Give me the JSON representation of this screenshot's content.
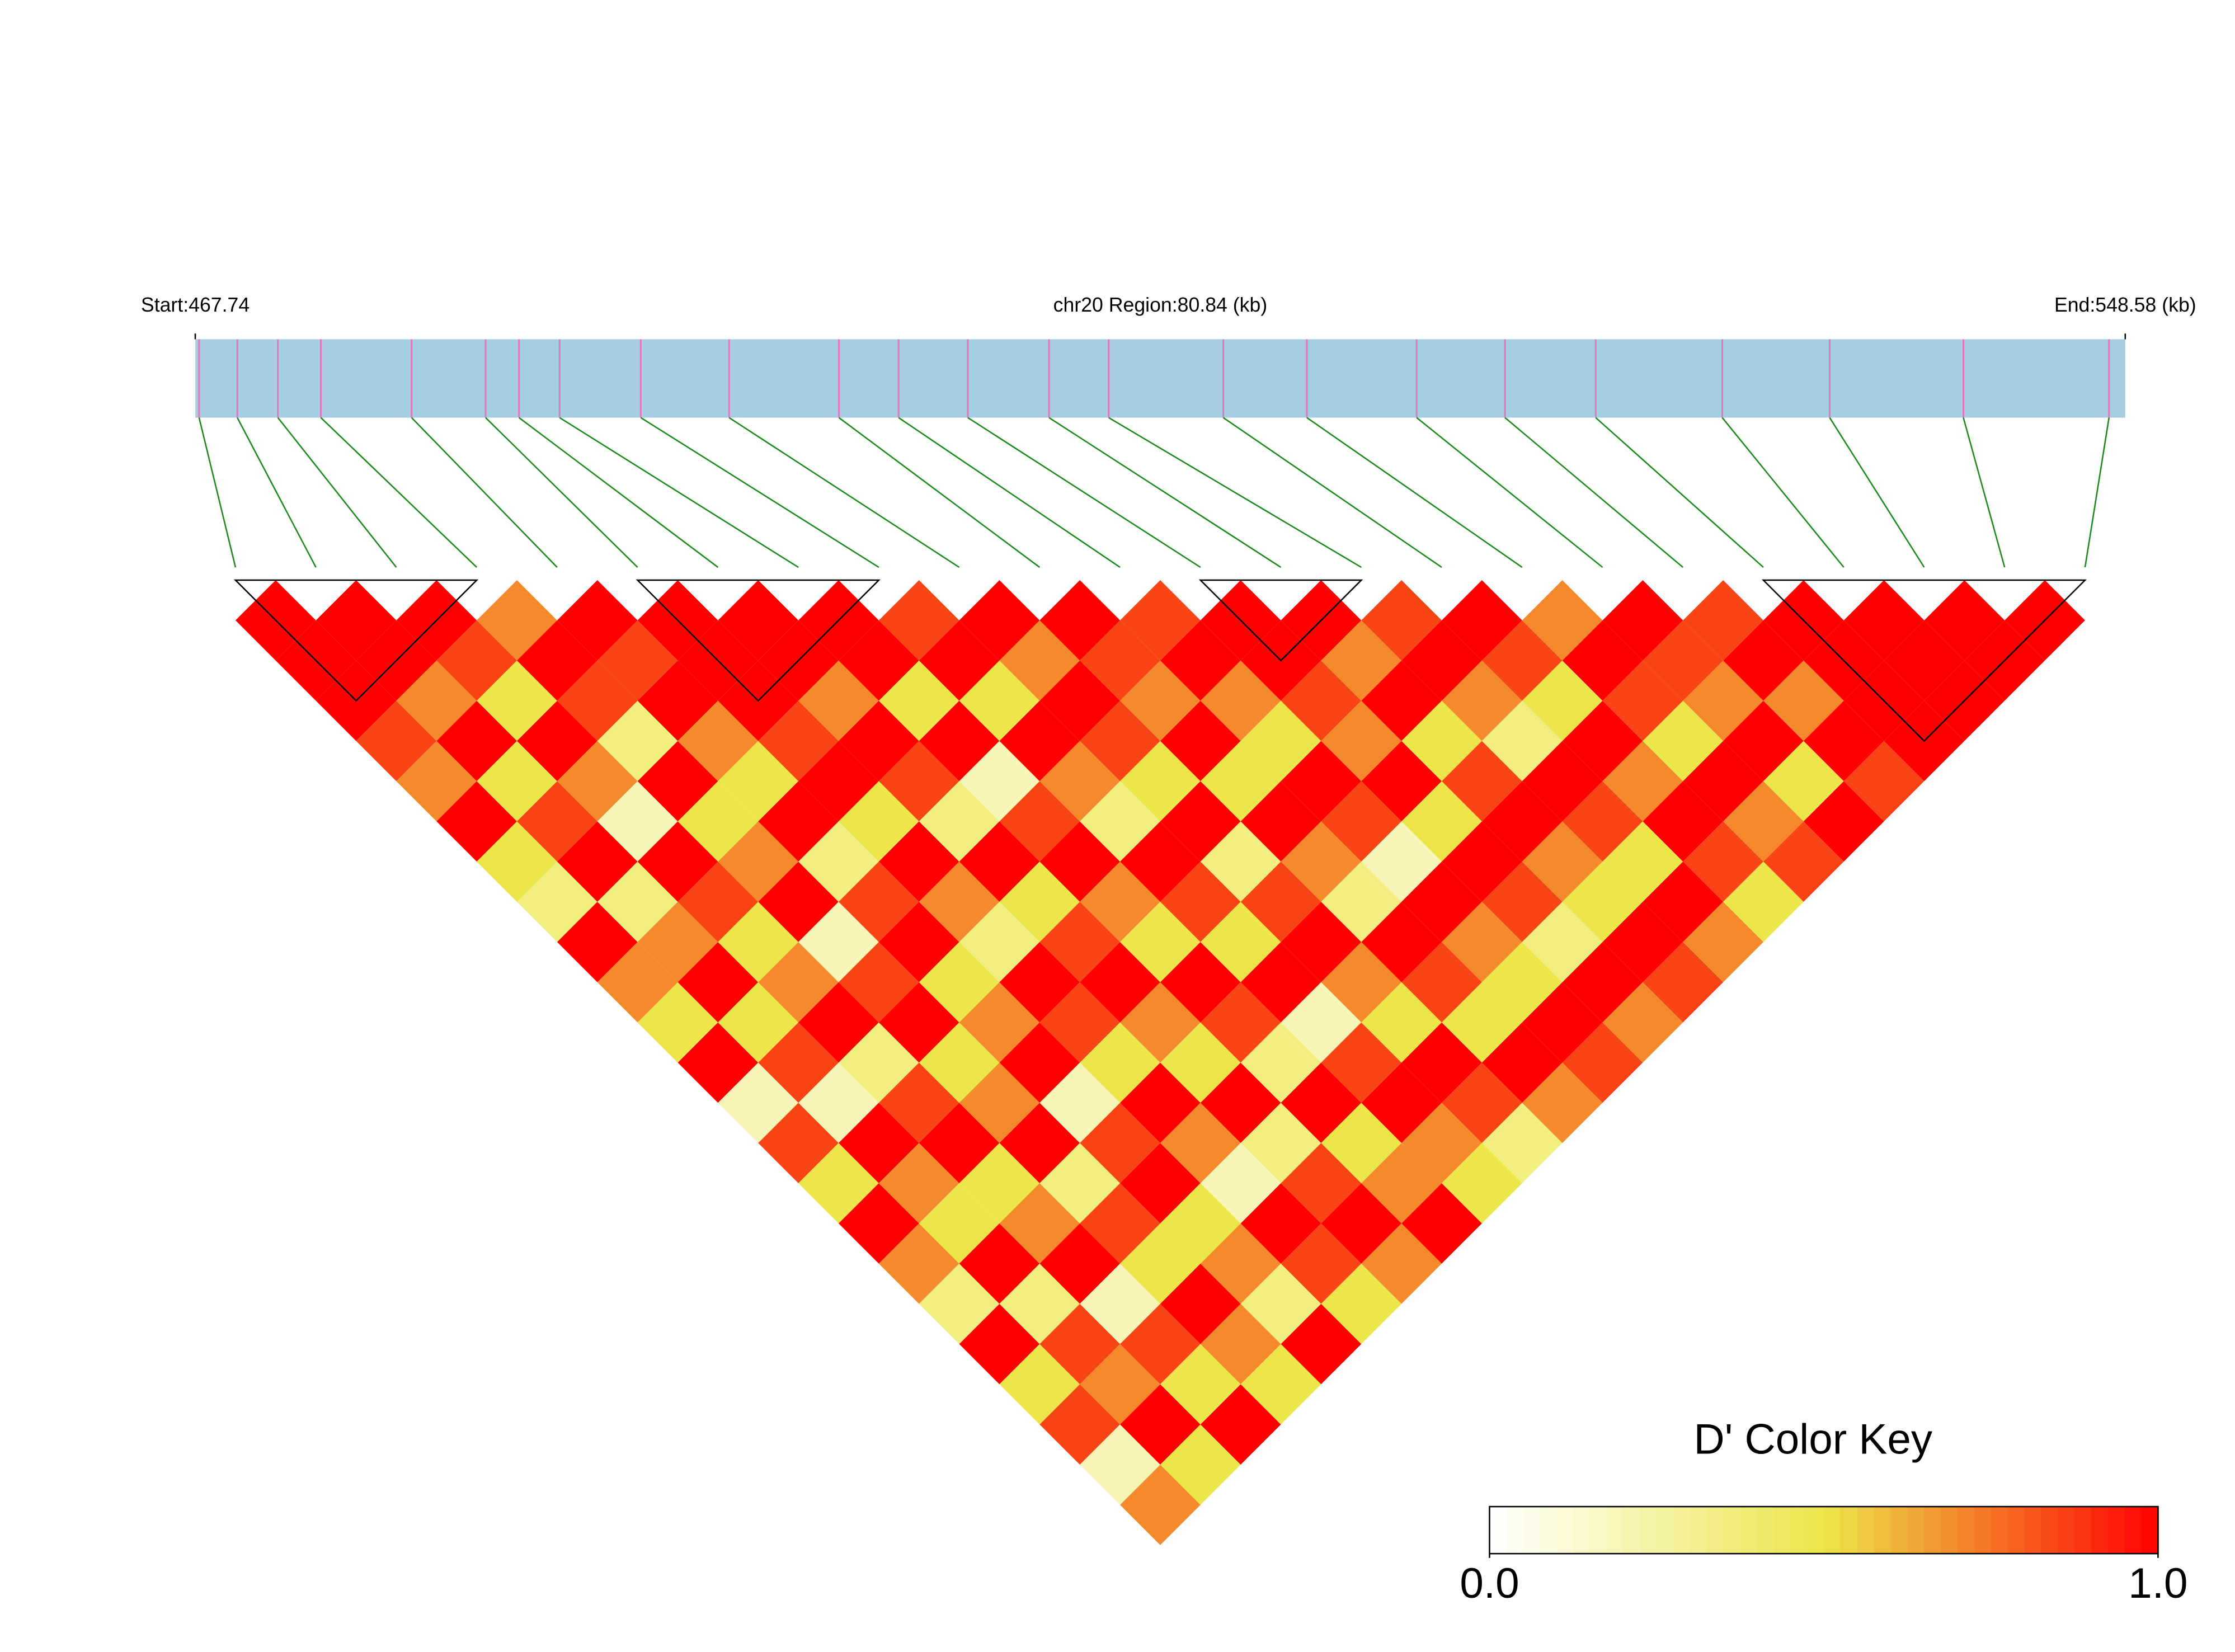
{
  "chart_data": {
    "type": "ld_heatmap",
    "title": "chr20 Region:80.84 (kb)",
    "xlim": [
      467.74,
      548.58
    ],
    "xticks": [
      {
        "value": 467.74,
        "label": "Start:467.74"
      },
      {
        "value": 548.58,
        "label": "End:548.58 (kb)"
      }
    ],
    "snp_positions": [
      467.9,
      469.5,
      471.2,
      473.0,
      476.8,
      479.9,
      481.3,
      483.0,
      486.4,
      490.1,
      494.7,
      497.2,
      500.1,
      503.5,
      506.0,
      510.8,
      514.3,
      518.9,
      522.6,
      526.4,
      531.7,
      536.2,
      541.8,
      547.9
    ],
    "bar_color": "#a6cee3",
    "snp_line_color": "#e377c2",
    "link_color": "#1a8a1a",
    "ld_matrix": [
      [
        1,
        1,
        1,
        0.85,
        0.7,
        1,
        0.5,
        0.35,
        1,
        0.7,
        0.5,
        1,
        0.2,
        0.85,
        0.5,
        1,
        0.7,
        0.35,
        1,
        0.5,
        0.85,
        0.2,
        0.7
      ],
      [
        1,
        1,
        0.7,
        1,
        0.5,
        0.85,
        1,
        0.35,
        0.7,
        1,
        0.5,
        0.85,
        0.2,
        1,
        0.7,
        0.5,
        1,
        0.35,
        0.85,
        0.7,
        1,
        0.5
      ],
      [
        1,
        0.85,
        0.5,
        1,
        0.7,
        0.2,
        1,
        0.85,
        0.5,
        0.7,
        1,
        0.35,
        0.85,
        1,
        0.5,
        0.7,
        1,
        0.2,
        0.85,
        0.5,
        1
      ],
      [
        0.7,
        1,
        0.85,
        0.35,
        1,
        0.5,
        0.7,
        1,
        0.2,
        0.85,
        1,
        0.5,
        0.7,
        1,
        0.35,
        0.85,
        0.5,
        1,
        0.7,
        0.5
      ],
      [
        1,
        0.85,
        1,
        0.7,
        0.5,
        1,
        0.35,
        0.85,
        1,
        0.5,
        0.7,
        1,
        0.2,
        0.85,
        1,
        0.5,
        0.7,
        0.35,
        1
      ],
      [
        1,
        1,
        1,
        0.85,
        1,
        0.5,
        1,
        0.7,
        0.35,
        1,
        0.85,
        0.5,
        1,
        0.7,
        0.2,
        1,
        0.85,
        0.5
      ],
      [
        1,
        1,
        0.7,
        1,
        0.85,
        0.35,
        1,
        0.5,
        0.85,
        1,
        0.7,
        0.5,
        1,
        0.35,
        0.85,
        1,
        0.7
      ],
      [
        1,
        1,
        0.5,
        1,
        0.2,
        0.85,
        1,
        0.7,
        0.5,
        1,
        0.85,
        0.35,
        1,
        0.5,
        0.7,
        1
      ],
      [
        0.85,
        1,
        0.5,
        1,
        0.7,
        0.35,
        1,
        0.85,
        0.5,
        1,
        0.2,
        0.85,
        1,
        0.7,
        0.5
      ],
      [
        1,
        0.7,
        1,
        0.85,
        0.5,
        1,
        0.35,
        0.85,
        1,
        0.7,
        0.5,
        1,
        0.85,
        0.35
      ],
      [
        1,
        0.85,
        0.7,
        1,
        0.5,
        1,
        0.7,
        0.35,
        1,
        0.85,
        0.5,
        1,
        0.7
      ],
      [
        0.85,
        1,
        0.7,
        0.5,
        1,
        0.85,
        0.2,
        1,
        0.7,
        0.5,
        1,
        0.85
      ],
      [
        1,
        1,
        0.85,
        0.7,
        1,
        0.5,
        1,
        0.85,
        0.35,
        1,
        0.7
      ],
      [
        1,
        0.7,
        1,
        0.5,
        0.85,
        1,
        0.7,
        0.5,
        1,
        0.85
      ],
      [
        0.85,
        1,
        0.7,
        0.35,
        1,
        0.85,
        0.5,
        1,
        0.7
      ],
      [
        1,
        0.85,
        0.5,
        1,
        0.7,
        1,
        0.85,
        0.5
      ],
      [
        0.7,
        1,
        0.85,
        0.5,
        1,
        0.7,
        0.85
      ],
      [
        1,
        0.85,
        0.7,
        1,
        0.5,
        1
      ],
      [
        0.85,
        1,
        0.7,
        1,
        0.85
      ],
      [
        1,
        1,
        1,
        1
      ],
      [
        1,
        1,
        1
      ],
      [
        1,
        1
      ],
      [
        1
      ]
    ],
    "blocks": [
      [
        0,
        3
      ],
      [
        5,
        8
      ],
      [
        12,
        14
      ],
      [
        19,
        23
      ]
    ],
    "color_key": {
      "title": "D' Color Key",
      "lim": [
        0,
        1
      ],
      "ticks": [
        {
          "value": 0,
          "label": "0.0"
        },
        {
          "value": 1,
          "label": "1.0"
        }
      ],
      "colors": [
        "#ffffff",
        "#ece64a",
        "#ff0000"
      ]
    }
  }
}
